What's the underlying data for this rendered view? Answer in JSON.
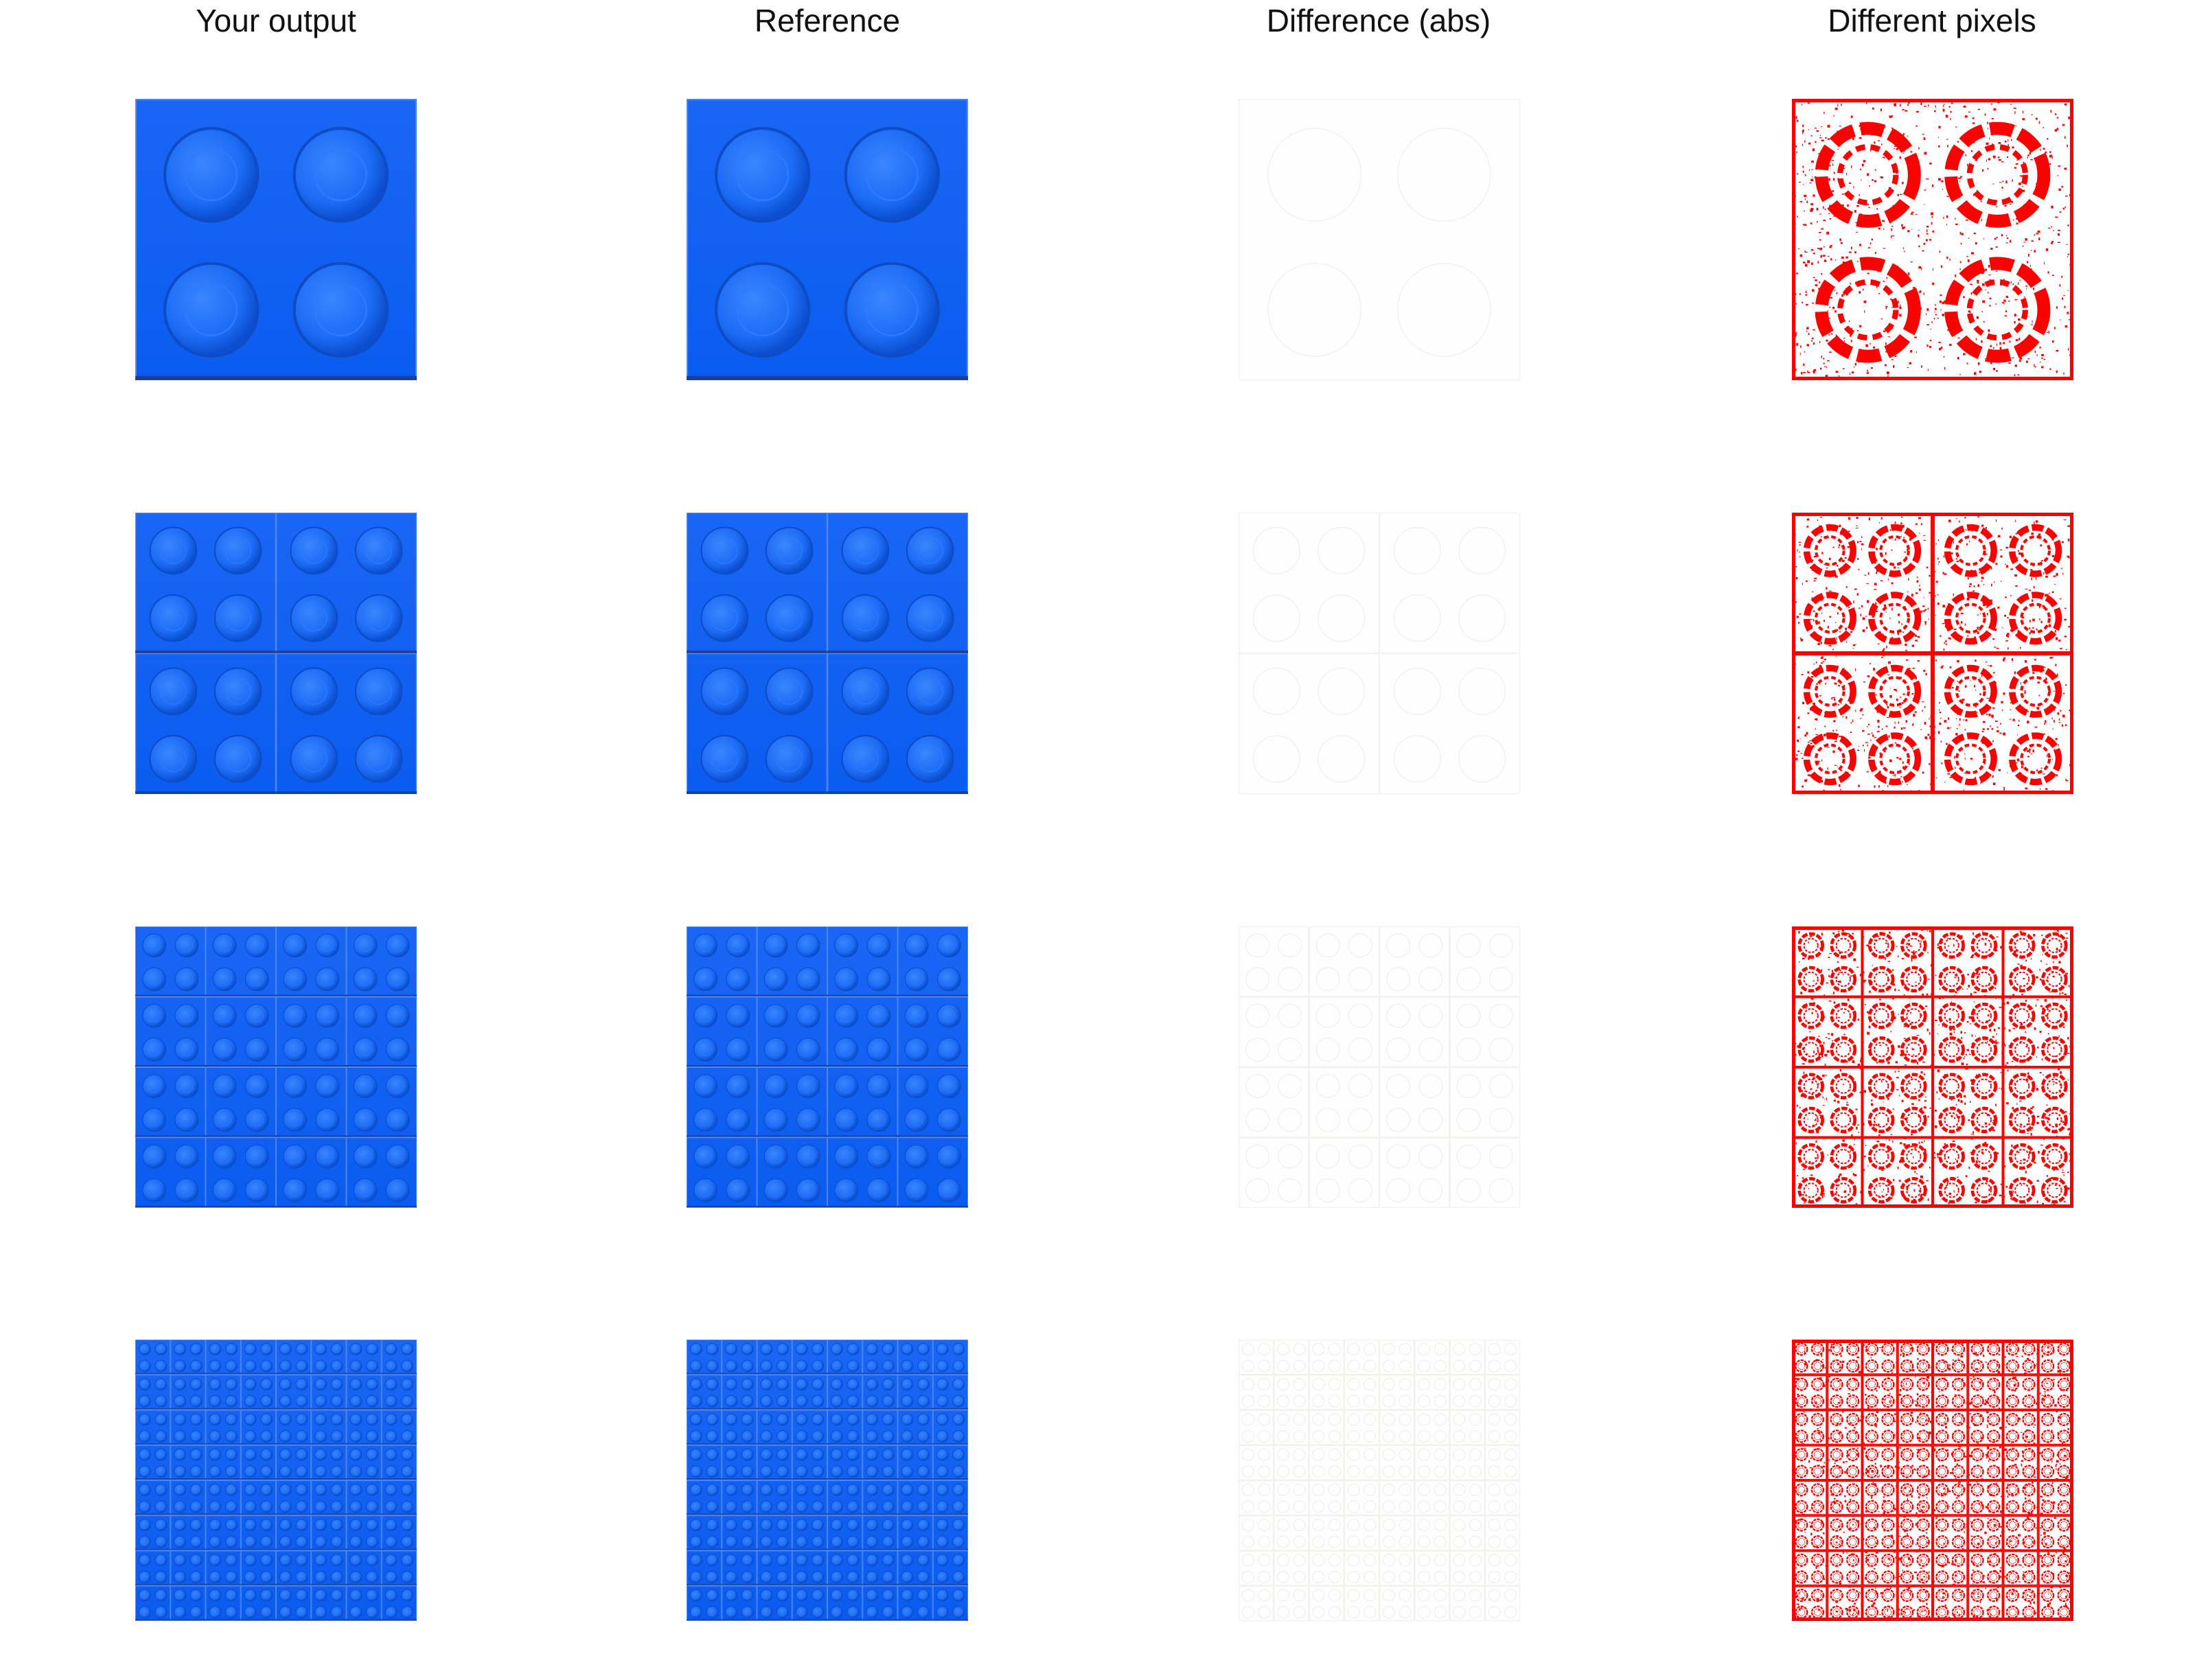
{
  "column_titles": [
    "Your output",
    "Reference",
    "Difference (abs)",
    "Different pixels"
  ],
  "rows": [
    {
      "grid": 1
    },
    {
      "grid": 2
    },
    {
      "grid": 4
    },
    {
      "grid": 8
    }
  ],
  "colors": {
    "brick_blue": "#0a5cf0",
    "brick_edge": "#1b3f9a",
    "stud_blue": "#1d6cf5",
    "diff_background": "#fefefe",
    "diff_marks": "#f2f2ec",
    "mask_background": "#ffffff",
    "mask_marks": "#ff0000"
  }
}
